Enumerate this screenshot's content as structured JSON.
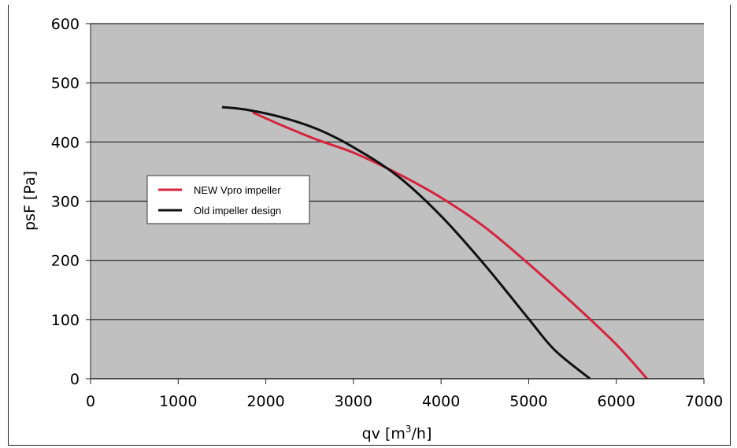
{
  "chart_data": {
    "type": "line",
    "title": "",
    "xlabel": "qv [m",
    "xlabel_sup": "3",
    "xlabel_tail": "/h]",
    "ylabel": "psF [Pa]",
    "xlim": [
      0,
      7000
    ],
    "ylim": [
      0,
      600
    ],
    "x_ticks": [
      "0",
      "1000",
      "2000",
      "3000",
      "4000",
      "5000",
      "6000",
      "7000"
    ],
    "y_ticks": [
      "0",
      "100",
      "200",
      "300",
      "400",
      "500",
      "600"
    ],
    "grid": "horizontal",
    "plot_background": "#c0c0c0",
    "legend_position": "middle-left",
    "series": [
      {
        "name": "NEW Vpro impeller",
        "color": "#d5233e",
        "points": [
          [
            1850,
            450
          ],
          [
            2200,
            427
          ],
          [
            2600,
            403
          ],
          [
            3000,
            382
          ],
          [
            3500,
            347
          ],
          [
            4000,
            306
          ],
          [
            4500,
            256
          ],
          [
            5000,
            194
          ],
          [
            5500,
            128
          ],
          [
            6000,
            58
          ],
          [
            6350,
            0
          ]
        ]
      },
      {
        "name": "Old impeller design",
        "color": "#111111",
        "points": [
          [
            1500,
            459
          ],
          [
            1800,
            454
          ],
          [
            2200,
            441
          ],
          [
            2600,
            421
          ],
          [
            3000,
            391
          ],
          [
            3500,
            343
          ],
          [
            4000,
            275
          ],
          [
            4500,
            192
          ],
          [
            5000,
            101
          ],
          [
            5300,
            48
          ],
          [
            5700,
            0
          ]
        ]
      }
    ]
  }
}
